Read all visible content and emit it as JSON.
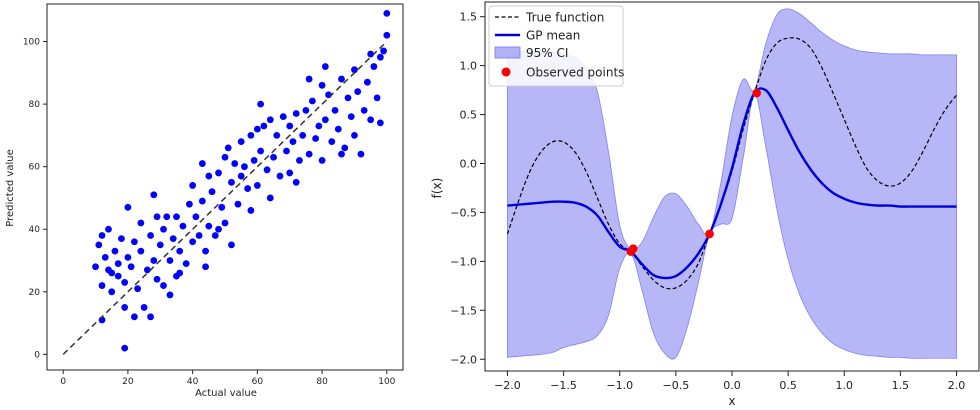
{
  "chart_data": [
    {
      "type": "scatter",
      "title": "",
      "xlabel": "Actual value",
      "ylabel": "Predicted value",
      "xlim": [
        -5,
        105
      ],
      "ylim": [
        -5,
        112
      ],
      "x_ticks": [
        0,
        20,
        40,
        60,
        80,
        100
      ],
      "y_ticks": [
        0,
        20,
        40,
        60,
        80,
        100
      ],
      "grid": false,
      "point_color": "#0000ff",
      "reference_line": {
        "x": [
          0,
          100
        ],
        "y": [
          0,
          100
        ],
        "color": "#333333",
        "style": "dashed"
      },
      "points": [
        [
          10,
          28
        ],
        [
          11,
          35
        ],
        [
          12,
          22
        ],
        [
          12,
          38
        ],
        [
          13,
          31
        ],
        [
          14,
          27
        ],
        [
          14,
          40
        ],
        [
          15,
          20
        ],
        [
          16,
          33
        ],
        [
          17,
          29
        ],
        [
          17,
          25
        ],
        [
          18,
          37
        ],
        [
          19,
          23
        ],
        [
          19,
          15
        ],
        [
          20,
          31
        ],
        [
          20,
          47
        ],
        [
          21,
          28
        ],
        [
          22,
          36
        ],
        [
          23,
          21
        ],
        [
          24,
          42
        ],
        [
          24,
          33
        ],
        [
          25,
          15
        ],
        [
          26,
          27
        ],
        [
          27,
          38
        ],
        [
          28,
          30
        ],
        [
          28,
          51
        ],
        [
          29,
          24
        ],
        [
          30,
          35
        ],
        [
          31,
          40
        ],
        [
          31,
          22
        ],
        [
          32,
          44
        ],
        [
          33,
          30
        ],
        [
          34,
          37
        ],
        [
          35,
          25
        ],
        [
          35,
          44
        ],
        [
          36,
          33
        ],
        [
          37,
          41
        ],
        [
          38,
          29
        ],
        [
          39,
          48
        ],
        [
          40,
          36
        ],
        [
          40,
          54
        ],
        [
          41,
          44
        ],
        [
          42,
          38
        ],
        [
          43,
          49
        ],
        [
          44,
          33
        ],
        [
          45,
          57
        ],
        [
          45,
          41
        ],
        [
          46,
          52
        ],
        [
          47,
          38
        ],
        [
          48,
          58
        ],
        [
          49,
          47
        ],
        [
          50,
          63
        ],
        [
          50,
          42
        ],
        [
          51,
          66
        ],
        [
          52,
          55
        ],
        [
          53,
          61
        ],
        [
          54,
          48
        ],
        [
          55,
          68
        ],
        [
          55,
          57
        ],
        [
          56,
          60
        ],
        [
          57,
          53
        ],
        [
          58,
          70
        ],
        [
          59,
          62
        ],
        [
          60,
          54
        ],
        [
          60,
          72
        ],
        [
          61,
          65
        ],
        [
          62,
          73
        ],
        [
          63,
          59
        ],
        [
          64,
          75
        ],
        [
          65,
          63
        ],
        [
          66,
          70
        ],
        [
          67,
          57
        ],
        [
          68,
          76
        ],
        [
          69,
          65
        ],
        [
          70,
          73
        ],
        [
          70,
          58
        ],
        [
          71,
          68
        ],
        [
          72,
          77
        ],
        [
          73,
          62
        ],
        [
          74,
          70
        ],
        [
          75,
          78
        ],
        [
          76,
          64
        ],
        [
          77,
          81
        ],
        [
          78,
          69
        ],
        [
          79,
          73
        ],
        [
          80,
          86
        ],
        [
          80,
          62
        ],
        [
          81,
          75
        ],
        [
          82,
          83
        ],
        [
          83,
          68
        ],
        [
          84,
          78
        ],
        [
          85,
          72
        ],
        [
          86,
          88
        ],
        [
          87,
          66
        ],
        [
          88,
          82
        ],
        [
          89,
          76
        ],
        [
          90,
          91
        ],
        [
          90,
          70
        ],
        [
          91,
          84
        ],
        [
          92,
          64
        ],
        [
          93,
          78
        ],
        [
          94,
          87
        ],
        [
          95,
          75
        ],
        [
          96,
          92
        ],
        [
          97,
          82
        ],
        [
          98,
          95
        ],
        [
          98,
          74
        ],
        [
          99,
          97
        ],
        [
          100,
          109
        ],
        [
          100,
          102
        ],
        [
          22,
          12
        ],
        [
          19,
          2
        ],
        [
          27,
          12
        ],
        [
          44,
          28
        ],
        [
          58,
          46
        ],
        [
          72,
          55
        ],
        [
          86,
          64
        ],
        [
          36,
          26
        ],
        [
          64,
          50
        ],
        [
          48,
          40
        ],
        [
          15,
          26
        ],
        [
          33,
          19
        ],
        [
          52,
          35
        ],
        [
          81,
          92
        ],
        [
          95,
          96
        ],
        [
          12,
          11
        ],
        [
          29,
          44
        ],
        [
          43,
          61
        ],
        [
          61,
          80
        ],
        [
          76,
          88
        ]
      ]
    },
    {
      "type": "line",
      "title": "",
      "xlabel": "x",
      "ylabel": "f(x)",
      "xlim": [
        -2.2,
        2.2
      ],
      "ylim": [
        -2.12,
        1.65
      ],
      "x_ticks": [
        -2.0,
        -1.5,
        -1.0,
        -0.5,
        0.0,
        0.5,
        1.0,
        1.5,
        2.0
      ],
      "x_tick_labels": [
        "−2.0",
        "−1.5",
        "−1.0",
        "−0.5",
        "0.0",
        "0.5",
        "1.0",
        "1.5",
        "2.0"
      ],
      "y_ticks": [
        -2.0,
        -1.5,
        -1.0,
        -0.5,
        0.0,
        0.5,
        1.0,
        1.5
      ],
      "y_tick_labels": [
        "−2.0",
        "−1.5",
        "−1.0",
        "−0.5",
        "0.0",
        "0.5",
        "1.0",
        "1.5"
      ],
      "grid": false,
      "legend_position": "top-left",
      "legend": [
        {
          "label": "True function",
          "kind": "dashed-line",
          "color": "#000000"
        },
        {
          "label": "GP mean",
          "kind": "line",
          "color": "#0000dd"
        },
        {
          "label": "95% CI",
          "kind": "patch",
          "color": "#9999f5"
        },
        {
          "label": "Observed points",
          "kind": "marker",
          "color": "#ff0000"
        }
      ],
      "x": [
        -2.0,
        -1.9,
        -1.8,
        -1.7,
        -1.6,
        -1.5,
        -1.4,
        -1.3,
        -1.2,
        -1.1,
        -1.0,
        -0.9,
        -0.8,
        -0.7,
        -0.6,
        -0.5,
        -0.4,
        -0.3,
        -0.2,
        -0.1,
        0.0,
        0.1,
        0.2,
        0.3,
        0.4,
        0.5,
        0.6,
        0.7,
        0.8,
        0.9,
        1.0,
        1.1,
        1.2,
        1.3,
        1.4,
        1.5,
        1.6,
        1.7,
        1.8,
        1.9,
        2.0
      ],
      "series": [
        {
          "name": "True function",
          "values": [
            -0.72,
            -0.38,
            -0.08,
            0.12,
            0.22,
            0.22,
            0.12,
            -0.08,
            -0.35,
            -0.62,
            -0.82,
            -0.9,
            -1.05,
            -1.19,
            -1.27,
            -1.27,
            -1.19,
            -1.02,
            -0.72,
            -0.42,
            -0.08,
            0.35,
            0.72,
            1.05,
            1.23,
            1.28,
            1.27,
            1.18,
            0.98,
            0.72,
            0.45,
            0.18,
            -0.05,
            -0.18,
            -0.23,
            -0.2,
            -0.08,
            0.12,
            0.35,
            0.55,
            0.7
          ]
        },
        {
          "name": "GP mean",
          "values": [
            -0.43,
            -0.42,
            -0.41,
            -0.4,
            -0.39,
            -0.39,
            -0.4,
            -0.44,
            -0.53,
            -0.7,
            -0.85,
            -0.9,
            -1.03,
            -1.14,
            -1.17,
            -1.15,
            -1.06,
            -0.92,
            -0.72,
            -0.42,
            -0.05,
            0.4,
            0.72,
            0.75,
            0.57,
            0.34,
            0.12,
            -0.06,
            -0.2,
            -0.3,
            -0.36,
            -0.4,
            -0.42,
            -0.43,
            -0.43,
            -0.44,
            -0.44,
            -0.44,
            -0.44,
            -0.44,
            -0.44
          ]
        },
        {
          "name": "95% CI upper",
          "values": [
            1.1,
            1.14,
            1.15,
            1.15,
            1.14,
            1.12,
            1.08,
            0.98,
            0.74,
            0.12,
            -0.63,
            -0.88,
            -0.8,
            -0.55,
            -0.34,
            -0.31,
            -0.44,
            -0.62,
            -0.71,
            -0.2,
            0.48,
            0.86,
            0.75,
            1.22,
            1.52,
            1.58,
            1.53,
            1.44,
            1.34,
            1.26,
            1.2,
            1.16,
            1.14,
            1.13,
            1.12,
            1.12,
            1.12,
            1.11,
            1.11,
            1.11,
            1.11
          ]
        },
        {
          "name": "95% CI lower",
          "values": [
            -1.98,
            -1.97,
            -1.96,
            -1.95,
            -1.93,
            -1.88,
            -1.85,
            -1.82,
            -1.76,
            -1.55,
            -1.07,
            -0.92,
            -1.3,
            -1.73,
            -1.94,
            -1.98,
            -1.68,
            -1.22,
            -0.72,
            -0.62,
            -0.56,
            0.06,
            0.7,
            0.18,
            -0.47,
            -0.98,
            -1.33,
            -1.57,
            -1.73,
            -1.84,
            -1.9,
            -1.94,
            -1.96,
            -1.97,
            -1.98,
            -1.98,
            -1.99,
            -1.99,
            -1.99,
            -1.99,
            -1.99
          ]
        }
      ],
      "observed_points": [
        [
          -0.9,
          -0.9
        ],
        [
          -0.88,
          -0.87
        ],
        [
          -0.2,
          -0.72
        ],
        [
          0.22,
          0.72
        ]
      ]
    }
  ]
}
